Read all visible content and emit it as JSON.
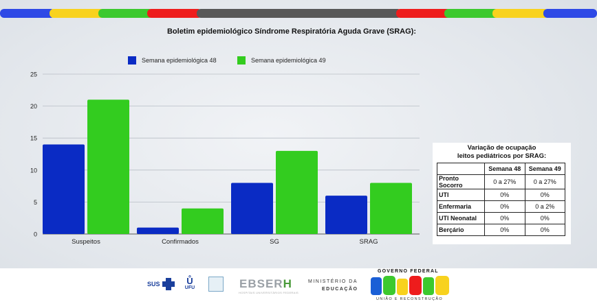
{
  "colors": {
    "series_48": "#0a2bc4",
    "series_49": "#33cc1f",
    "band_yellow": "#f8d21e",
    "band_green": "#3cc92e",
    "band_red": "#ee1c1c",
    "band_gray": "#585858",
    "band_blue": "#2e49e6"
  },
  "chart_data": {
    "type": "bar",
    "title": "Boletim epidemiológico Síndrome Respiratória Aguda Grave (SRAG):",
    "categories": [
      "Suspeitos",
      "Confirmados",
      "SG",
      "SRAG"
    ],
    "series": [
      {
        "name": "Semana epidemiológica 48",
        "values": [
          14,
          1,
          8,
          6
        ]
      },
      {
        "name": "Semana epidemiológica 49",
        "values": [
          21,
          4,
          13,
          8
        ]
      }
    ],
    "ylim": [
      0,
      25
    ],
    "yticks": [
      "0",
      "5",
      "10",
      "15",
      "20",
      "25"
    ],
    "grid": true,
    "legend": "top-center",
    "xlabel": "",
    "ylabel": ""
  },
  "table": {
    "caption_line1": "Variação de ocupação",
    "caption_line2": "leitos pediátricos por SRAG:",
    "headers": [
      "",
      "Semana 48",
      "Semana 49"
    ],
    "rows": [
      [
        "Pronto Socorro",
        "0 a 27%",
        "0 a 27%"
      ],
      [
        "UTI",
        "0%",
        "0%"
      ],
      [
        "Enfermaria",
        "0%",
        "0 a 2%"
      ],
      [
        "UTI Neonatal",
        "0%",
        "0%"
      ],
      [
        "Berçário",
        "0%",
        "0%"
      ]
    ]
  },
  "footer": {
    "sus": "SUS",
    "ufu": "UFU",
    "ebserh_main": "EBSER",
    "ebserh_h": "H",
    "ebserh_sub": "HOSPITAIS UNIVERSITÁRIOS FEDERAIS",
    "mec_line1": "MINISTÉRIO DA",
    "mec_line2": "EDUCAÇÃO",
    "gov": "GOVERNO FEDERAL",
    "brasil": "BRASIL",
    "uniao": "UNIÃO E RECONSTRUÇÃO"
  }
}
